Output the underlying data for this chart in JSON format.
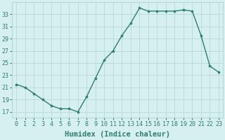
{
  "x": [
    0,
    1,
    2,
    3,
    4,
    5,
    6,
    7,
    8,
    9,
    10,
    11,
    12,
    13,
    14,
    15,
    16,
    17,
    18,
    19,
    20,
    21,
    22,
    23
  ],
  "y": [
    21.5,
    21.0,
    20.0,
    19.0,
    18.0,
    17.5,
    17.5,
    17.0,
    19.5,
    22.5,
    25.5,
    27.0,
    29.5,
    31.5,
    34.0,
    33.5,
    33.5,
    33.5,
    33.5,
    33.7,
    33.5,
    29.5,
    24.5,
    23.5
  ],
  "line_color": "#2e7d6e",
  "marker": "*",
  "marker_size": 3,
  "background_color": "#d6f0f0",
  "grid_color": "#b8d8d8",
  "xlabel": "Humidex (Indice chaleur)",
  "xlim": [
    -0.5,
    23.5
  ],
  "ylim": [
    16,
    35
  ],
  "yticks": [
    17,
    19,
    21,
    23,
    25,
    27,
    29,
    31,
    33
  ],
  "xtick_labels": [
    "0",
    "1",
    "2",
    "3",
    "4",
    "5",
    "6",
    "7",
    "8",
    "9",
    "10",
    "11",
    "12",
    "13",
    "14",
    "15",
    "16",
    "17",
    "18",
    "19",
    "20",
    "21",
    "22",
    "23"
  ],
  "tick_fontsize": 6.0,
  "xlabel_fontsize": 7.5,
  "linewidth": 1.0
}
